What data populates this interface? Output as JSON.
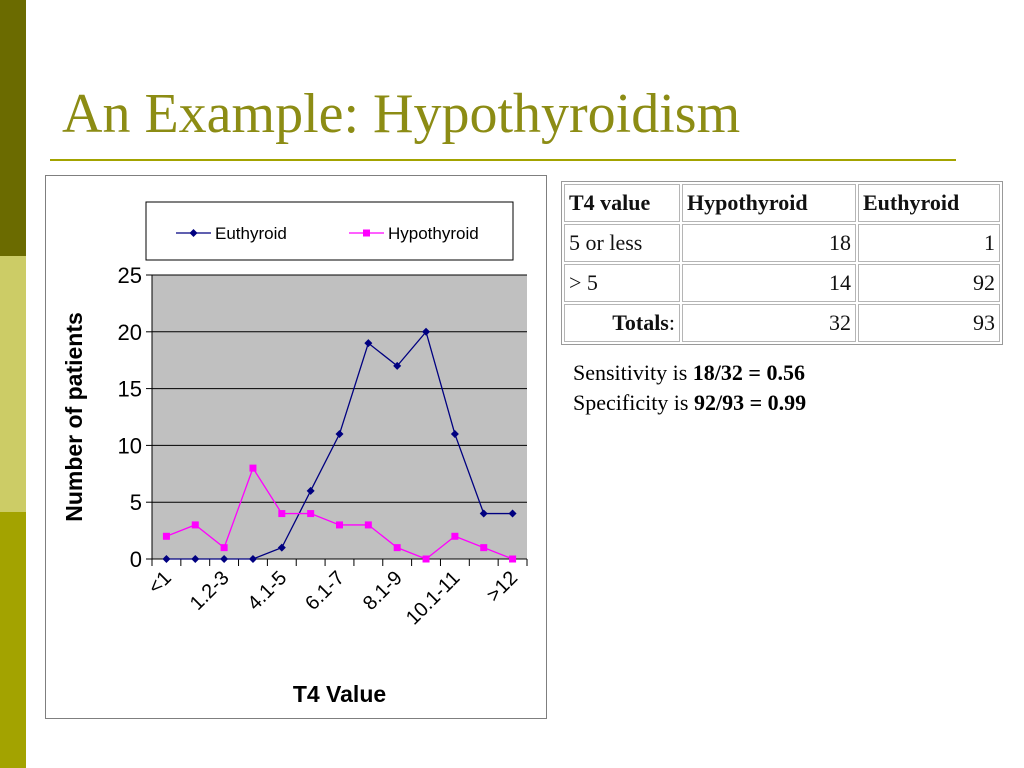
{
  "slide": {
    "title": "An Example: Hypothyroidism"
  },
  "table": {
    "headers": [
      "T4 value",
      "Hypothyroid",
      "Euthyroid"
    ],
    "rows": [
      {
        "label": "5 or less",
        "hypo": "18",
        "eu": "1"
      },
      {
        "label": "> 5",
        "hypo": "14",
        "eu": "92"
      }
    ],
    "totals": {
      "label": "Totals",
      "colon": ":",
      "hypo": "32",
      "eu": "93"
    }
  },
  "stats": {
    "sensitivity": {
      "text": "Sensitivity is ",
      "value": "18/32 = 0.56"
    },
    "specificity": {
      "text": "Specificity is ",
      "value": "92/93 = 0.99"
    }
  },
  "chart_data": {
    "type": "line",
    "xlabel": "T4 Value",
    "ylabel": "Number of patients",
    "ylim": [
      0,
      25
    ],
    "yticks": [
      0,
      5,
      10,
      15,
      20,
      25
    ],
    "x_tick_labels": [
      "<1",
      "1.2-3",
      "4.1-5",
      "6.1-7",
      "8.1-9",
      "10.1-11",
      ">12"
    ],
    "point_count": 13,
    "grid": true,
    "legend_position": "top",
    "plot_background": "#c0c0c0",
    "series": [
      {
        "name": "Euthyroid",
        "color": "#000080",
        "marker": "diamond",
        "values": [
          0,
          0,
          0,
          0,
          1,
          6,
          11,
          19,
          17,
          20,
          11,
          4,
          4
        ]
      },
      {
        "name": "Hypothyroid",
        "color": "#ff00ff",
        "marker": "square",
        "values": [
          2,
          3,
          1,
          8,
          4,
          4,
          3,
          3,
          1,
          0,
          2,
          1,
          0
        ]
      }
    ]
  }
}
